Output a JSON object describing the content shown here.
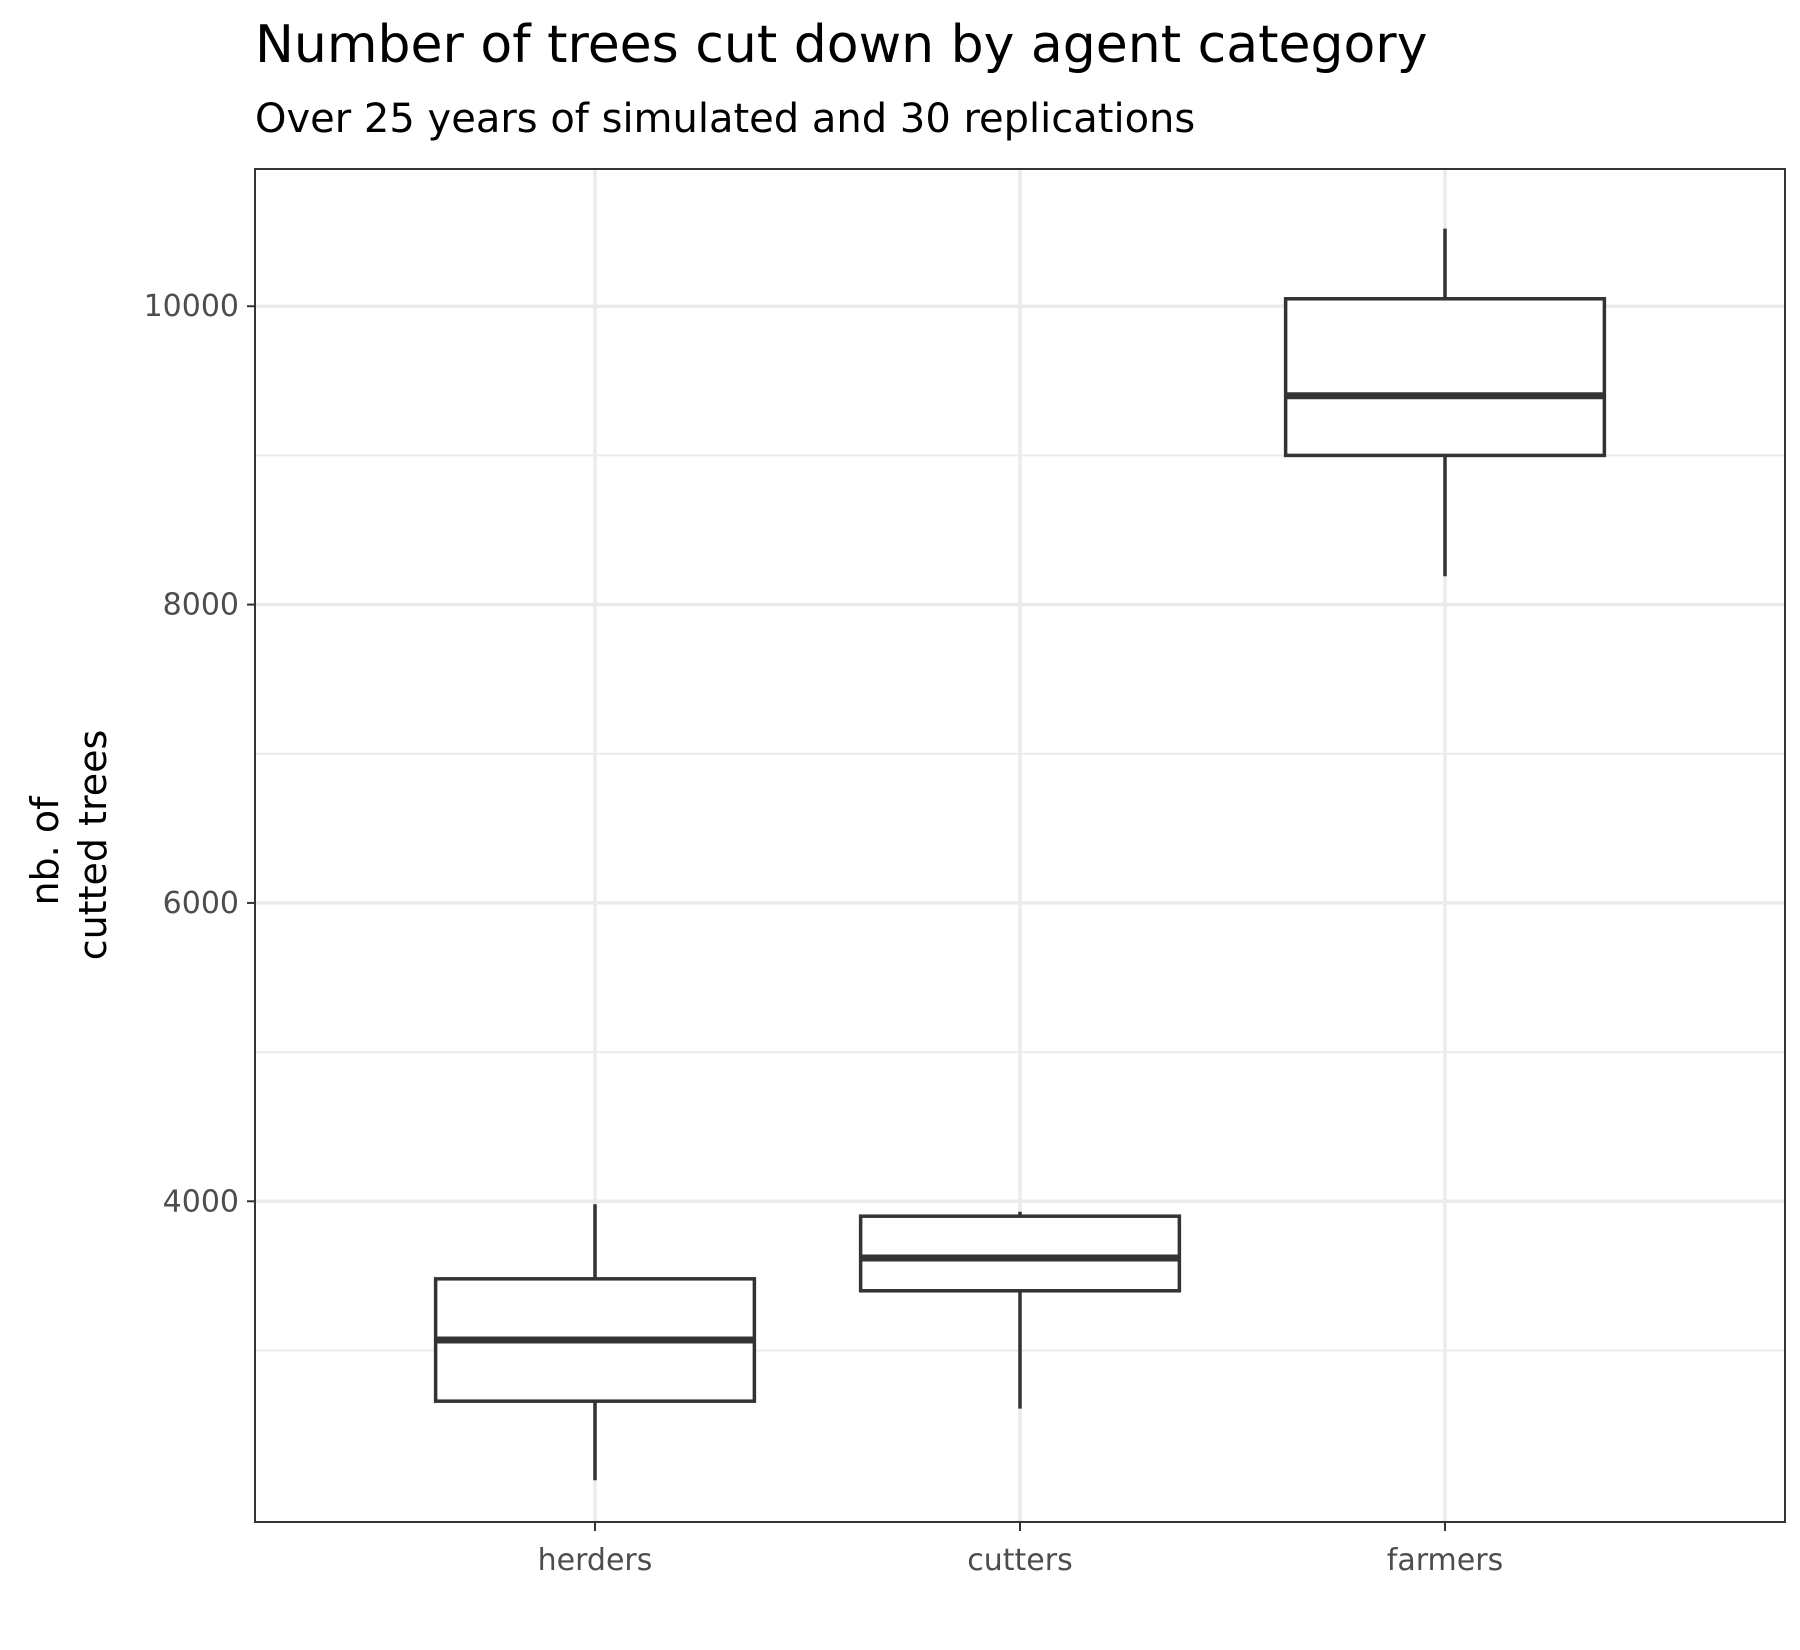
{
  "chart_data": {
    "type": "boxplot",
    "title": "Number of trees cut down by agent category",
    "subtitle": "Over 25 years of simulated and 30 replications",
    "xlabel": "",
    "ylabel_lines": [
      "nb. of",
      "cutted trees"
    ],
    "categories": [
      "herders",
      "cutters",
      "farmers"
    ],
    "boxes": [
      {
        "category": "herders",
        "min": 2130,
        "q1": 2660,
        "median": 3070,
        "q3": 3480,
        "max": 3980
      },
      {
        "category": "cutters",
        "min": 2610,
        "q1": 3400,
        "median": 3620,
        "q3": 3900,
        "max": 3930
      },
      {
        "category": "farmers",
        "min": 8190,
        "q1": 9000,
        "median": 9400,
        "q3": 10050,
        "max": 10520
      }
    ],
    "ylim": [
      1850,
      10920
    ],
    "yticks": [
      4000,
      6000,
      8000,
      10000
    ],
    "yticks_minor": [
      3000,
      5000,
      7000,
      9000
    ],
    "grid": true,
    "colors": {
      "panel_border": "#333333",
      "grid": "#ebebeb",
      "box_stroke": "#333333",
      "box_fill": "#ffffff"
    }
  }
}
